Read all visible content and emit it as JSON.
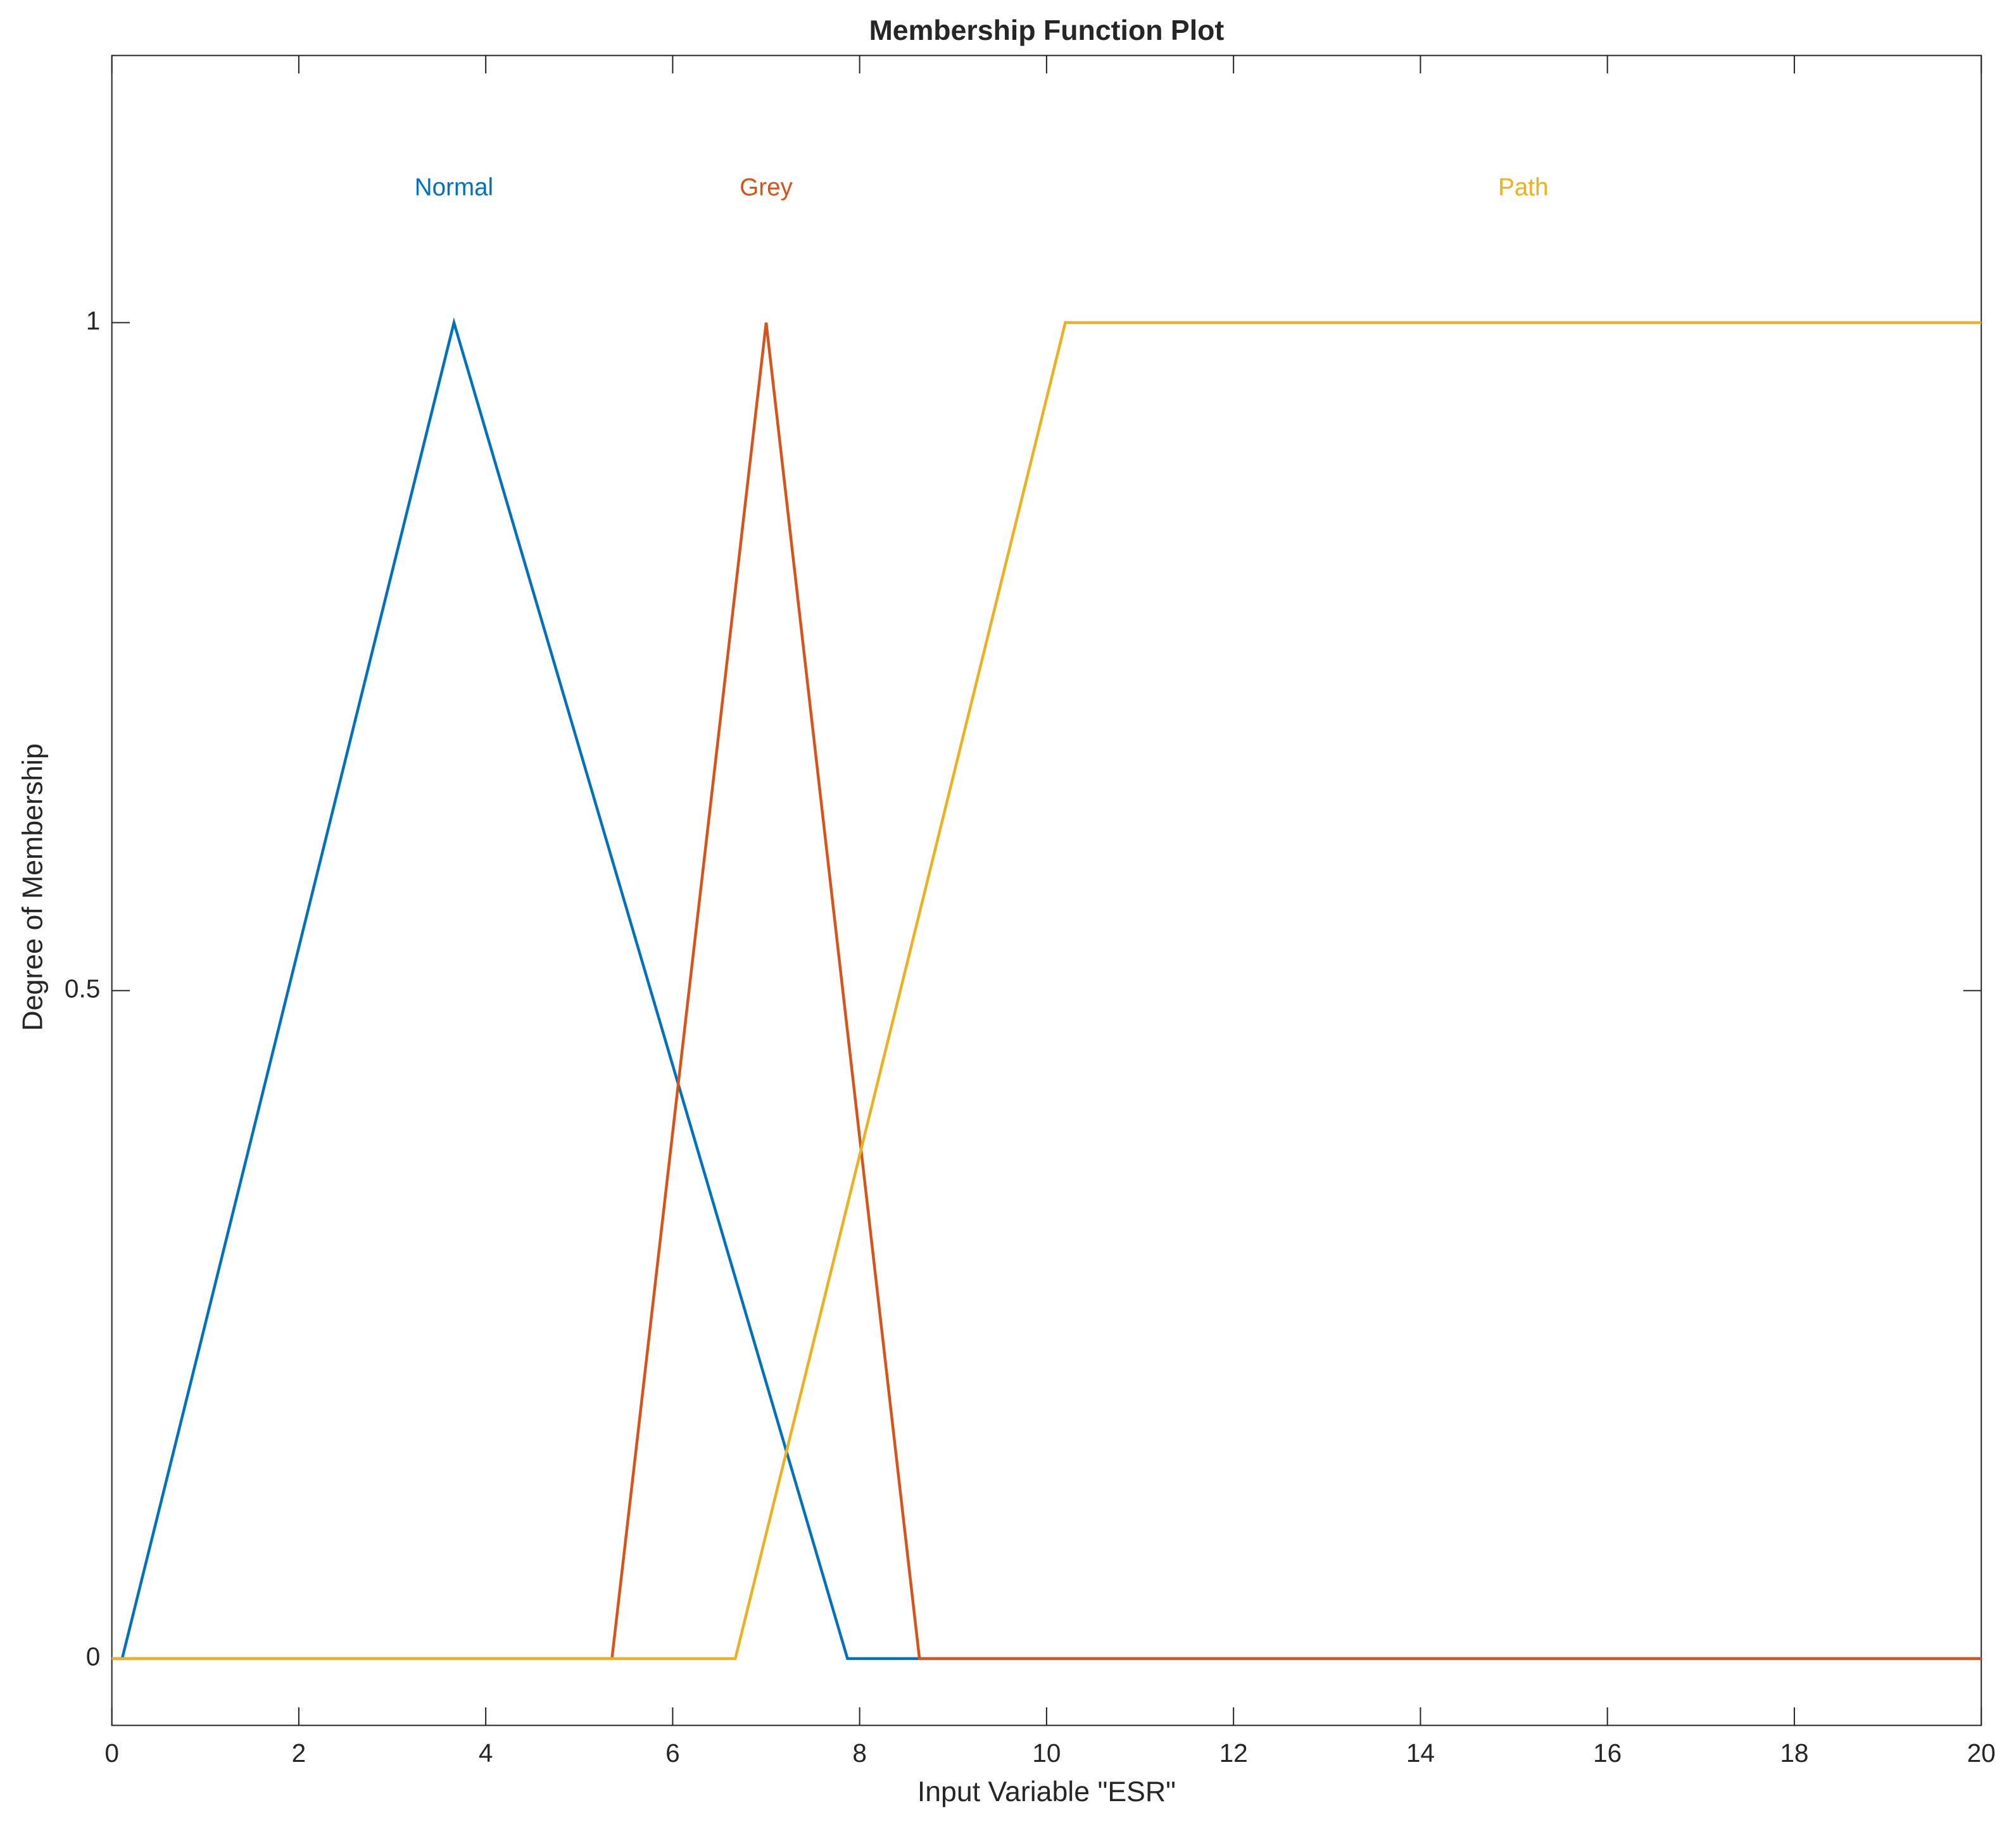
{
  "chart_data": {
    "type": "line",
    "title": "Membership Function Plot",
    "x_label": "Input Variable \"ESR\"",
    "y_label": "Degree of Membership",
    "xlim": [
      0,
      20
    ],
    "xticks": [
      0,
      2,
      4,
      6,
      8,
      10,
      12,
      14,
      16,
      18,
      20
    ],
    "ylim": [
      -0.05,
      1.2
    ],
    "yticks": [
      0,
      0.5,
      1
    ],
    "grid": false,
    "series": [
      {
        "name": "Normal",
        "color": "#0072bd",
        "x": [
          0,
          0.11,
          3.66,
          7.87,
          20
        ],
        "values": [
          0,
          0,
          1,
          0,
          0
        ]
      },
      {
        "name": "Grey",
        "color": "#d95319",
        "x": [
          0,
          5.35,
          7.0,
          8.64,
          20
        ],
        "values": [
          0,
          0,
          1,
          0,
          0
        ]
      },
      {
        "name": "Path",
        "color": "#edb120",
        "x": [
          0,
          6.67,
          10.2,
          20
        ],
        "values": [
          0,
          0,
          1,
          1
        ]
      }
    ]
  }
}
